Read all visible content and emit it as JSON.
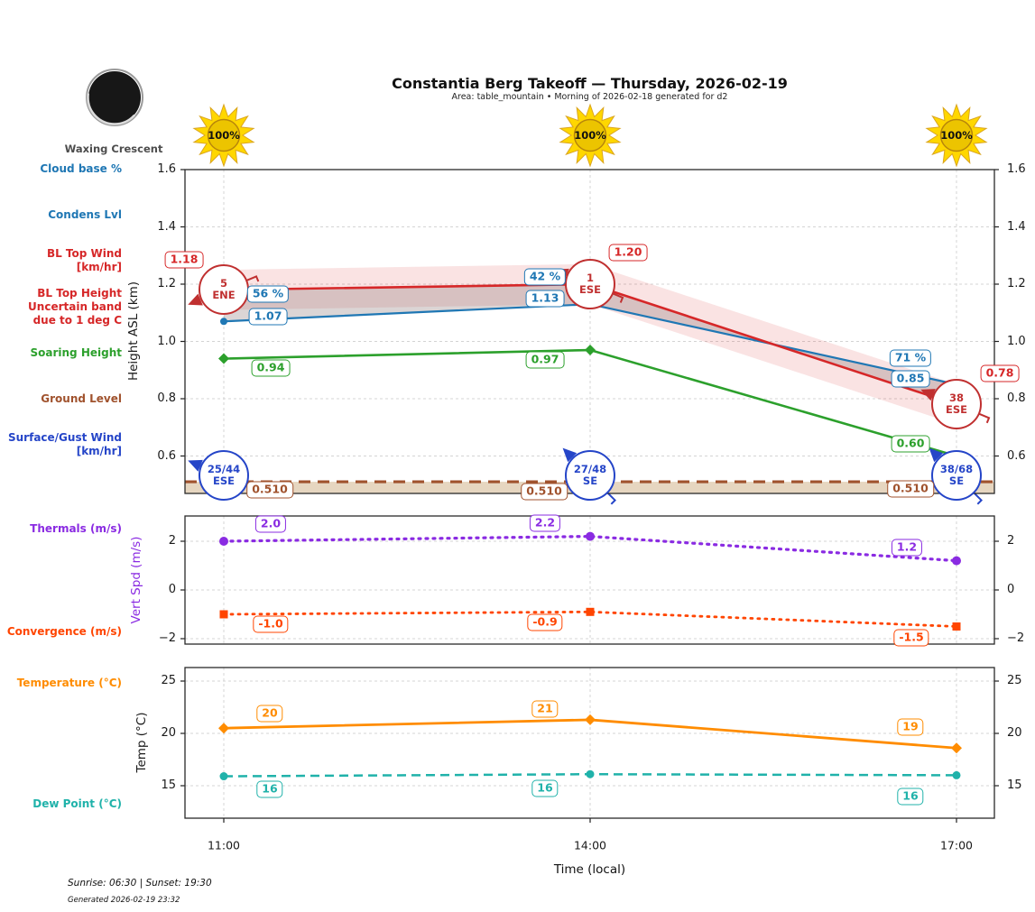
{
  "header": {
    "title": "Constantia Berg Takeoff — Thursday, 2026-02-19",
    "subtitle": "Area: table_mountain • Morning of 2026-02-18 generated for d2",
    "moon_phase": "Waxing Crescent",
    "sun_percents": [
      "100%",
      "100%",
      "100%"
    ]
  },
  "footer": {
    "sun_times": "Sunrise: 06:30 | Sunset: 19:30",
    "generated": "Generated 2026-02-19 23:32"
  },
  "x_axis": {
    "label": "Time (local)",
    "ticks": [
      "11:00",
      "14:00",
      "17:00"
    ]
  },
  "left_labels": [
    {
      "lines": [
        "Cloud base %"
      ],
      "color": "#1f77b4"
    },
    {
      "lines": [
        "Condens Lvl"
      ],
      "color": "#1f77b4"
    },
    {
      "lines": [
        "BL Top Wind",
        "[km/hr]"
      ],
      "color": "#d62728"
    },
    {
      "lines": [
        "BL Top Height",
        "Uncertain band",
        "due to 1 deg C"
      ],
      "color": "#d62728"
    },
    {
      "lines": [
        "Soaring Height"
      ],
      "color": "#2ca02c"
    },
    {
      "lines": [
        "Ground Level"
      ],
      "color": "#a0522d"
    },
    {
      "lines": [
        "Surface/Gust Wind",
        "[km/hr]"
      ],
      "color": "#2545c8"
    },
    {
      "lines": [
        "Thermals (m/s)"
      ],
      "color": "#8a2be2"
    },
    {
      "lines": [
        "Convergence (m/s)"
      ],
      "color": "#ff4500"
    },
    {
      "lines": [
        "Temperature (°C)"
      ],
      "color": "#ff8c00"
    },
    {
      "lines": [
        "Dew Point (°C)"
      ],
      "color": "#20b2aa"
    }
  ],
  "colors": {
    "cloud_blue": "#1f77b4",
    "bl_red": "#d62728",
    "soar_green": "#2ca02c",
    "ground_brown": "#a0522d",
    "surface_blue": "#2545c8",
    "thermal_purple": "#8a2be2",
    "convergence_orange_red": "#ff4500",
    "temp_orange": "#ff8c00",
    "dew_teal": "#20b2aa",
    "sun_gold": "#FFD700"
  },
  "chart_data": [
    {
      "id": "heights",
      "type": "line",
      "x": [
        "11:00",
        "14:00",
        "17:00"
      ],
      "x_hours": [
        11,
        14,
        17
      ],
      "ylabel": "Height ASL (km)",
      "ylim": [
        0.468,
        1.6
      ],
      "yticks": [
        0.6,
        0.8,
        1.0,
        1.2,
        1.4,
        1.6
      ],
      "grid": true,
      "series": [
        {
          "name": "BL Top Height",
          "color": "#d62728",
          "style": "solid",
          "values": [
            1.18,
            1.2,
            0.78
          ],
          "labels": [
            "1.18",
            "1.20",
            "0.78"
          ],
          "uncertainty_band_km": 0.07
        },
        {
          "name": "Condens Lvl",
          "color": "#1f77b4",
          "style": "solid",
          "marker": "circle",
          "values": [
            1.07,
            1.13,
            0.85
          ],
          "labels": [
            "1.07",
            "1.13",
            "0.85"
          ]
        },
        {
          "name": "Soaring Height",
          "color": "#2ca02c",
          "style": "solid",
          "marker": "diamond",
          "values": [
            0.94,
            0.97,
            0.6
          ],
          "labels": [
            "0.94",
            "0.97",
            "0.60"
          ]
        },
        {
          "name": "Ground Level",
          "color": "#a0522d",
          "style": "dashed",
          "values": [
            0.51,
            0.51,
            0.51
          ],
          "labels": [
            "0.510",
            "0.510",
            "0.510"
          ]
        }
      ],
      "annotations": {
        "cloud_base_pct": {
          "name": "Cloud base %",
          "color": "#1f77b4",
          "labels": [
            "56 %",
            "42 %",
            "71 %"
          ]
        },
        "bl_top_wind": {
          "name": "BL Top Wind [km/hr]",
          "color": "#c03030",
          "points": [
            {
              "speed": "5",
              "dir": "ENE"
            },
            {
              "speed": "1",
              "dir": "ESE"
            },
            {
              "speed": "38",
              "dir": "ESE"
            }
          ]
        },
        "surface_gust_wind": {
          "name": "Surface/Gust Wind [km/hr]",
          "color": "#2545c8",
          "points": [
            {
              "speed": "25/44",
              "dir": "ESE"
            },
            {
              "speed": "27/48",
              "dir": "SE"
            },
            {
              "speed": "38/68",
              "dir": "SE"
            }
          ]
        }
      }
    },
    {
      "id": "vert_speed",
      "type": "line",
      "x": [
        "11:00",
        "14:00",
        "17:00"
      ],
      "x_hours": [
        11,
        14,
        17
      ],
      "ylabel": "Vert Spd (m/s)",
      "ylim": [
        -2.25,
        3.05
      ],
      "yticks": [
        -2,
        0,
        2
      ],
      "grid": true,
      "series": [
        {
          "name": "Thermals (m/s)",
          "color": "#8a2be2",
          "style": "dotted",
          "marker": "circle",
          "values": [
            2.0,
            2.2,
            1.2
          ],
          "labels": [
            "2.0",
            "2.2",
            "1.2"
          ]
        },
        {
          "name": "Convergence (m/s)",
          "color": "#ff4500",
          "style": "dotted",
          "marker": "square",
          "values": [
            -1.0,
            -0.9,
            -1.5
          ],
          "labels": [
            "-1.0",
            "-0.9",
            "-1.5"
          ]
        }
      ]
    },
    {
      "id": "temperature",
      "type": "line",
      "x": [
        "11:00",
        "14:00",
        "17:00"
      ],
      "x_hours": [
        11,
        14,
        17
      ],
      "ylabel": "Temp (°C)",
      "ylim": [
        11.9,
        26.3
      ],
      "yticks": [
        15,
        20,
        25
      ],
      "grid": true,
      "series": [
        {
          "name": "Temperature (°C)",
          "color": "#ff8c00",
          "style": "solid",
          "marker": "diamond",
          "values": [
            20.5,
            21.3,
            18.6
          ],
          "labels": [
            "20",
            "21",
            "19"
          ]
        },
        {
          "name": "Dew Point (°C)",
          "color": "#20b2aa",
          "style": "dashed",
          "marker": "circle",
          "values": [
            15.9,
            16.1,
            16.0
          ],
          "labels": [
            "16",
            "16",
            "16"
          ]
        }
      ]
    }
  ]
}
